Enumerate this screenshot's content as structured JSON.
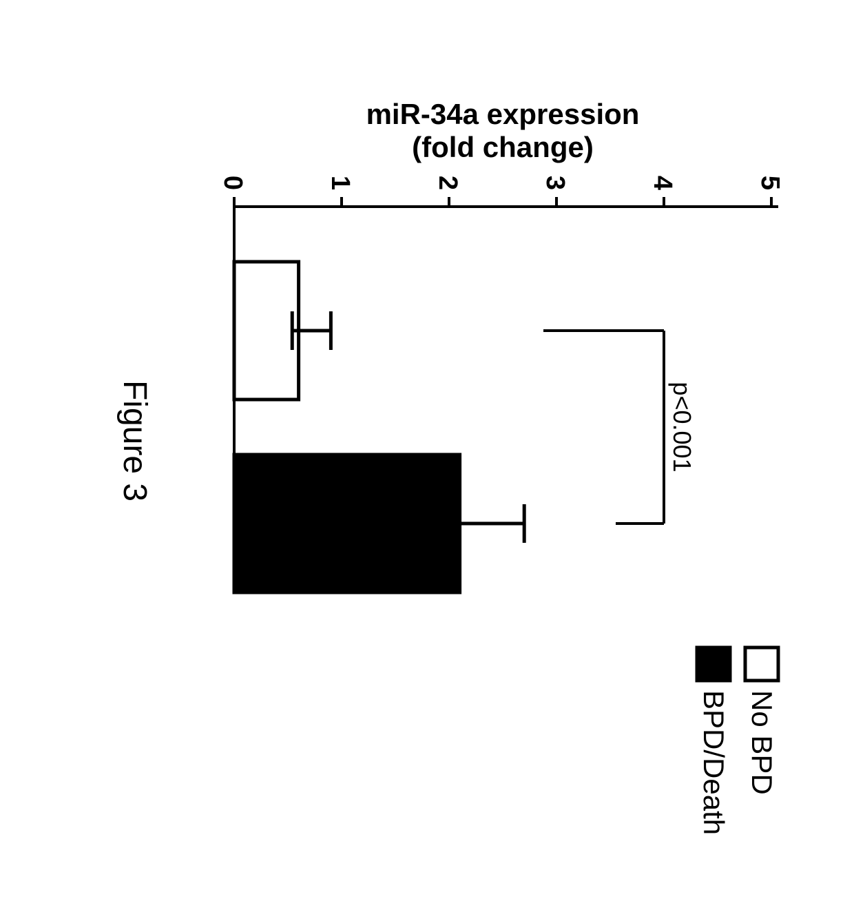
{
  "chart": {
    "type": "bar",
    "caption": "Figure 3",
    "ylabel_line1": "miR-34a expression",
    "ylabel_line2": "(fold change)",
    "ylim": [
      0,
      5
    ],
    "yticks": [
      0,
      1,
      2,
      3,
      4,
      5
    ],
    "ytick_labels": [
      "0",
      "1",
      "2",
      "3",
      "4",
      "5"
    ],
    "axis_color": "#000000",
    "axis_width": 4,
    "background_color": "#ffffff",
    "label_fontsize": 42,
    "tick_fontsize": 38,
    "legend_fontsize": 42,
    "bars": [
      {
        "name": "No BPD",
        "value": 0.6,
        "error": 0.3,
        "fill": "#ffffff",
        "stroke": "#000000",
        "pattern": "diagonal"
      },
      {
        "name": "BPD/Death",
        "value": 2.1,
        "error": 0.6,
        "fill": "#000000",
        "stroke": "#000000",
        "pattern": "none"
      }
    ],
    "legend": {
      "items": [
        {
          "label": "No BPD",
          "fill": "#ffffff",
          "stroke": "#000000"
        },
        {
          "label": "BPD/Death",
          "fill": "#000000",
          "stroke": "#000000"
        }
      ]
    },
    "significance": {
      "text": "p<0.001",
      "fontsize": 36
    }
  }
}
